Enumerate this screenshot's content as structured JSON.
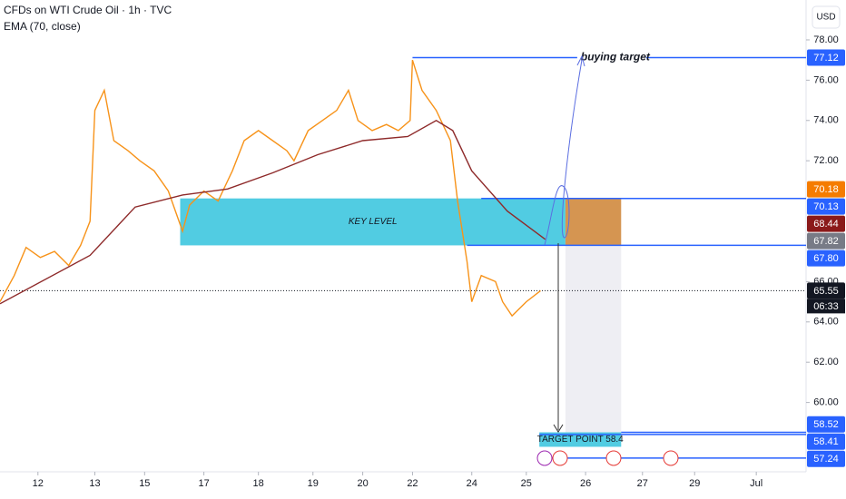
{
  "chart_data": {
    "type": "line",
    "title": "CFDs on WTI Crude Oil · 1h · TVC",
    "currency": "USD",
    "xlim": [
      0,
      340
    ],
    "xticks": [
      {
        "value": 16,
        "label": "12"
      },
      {
        "value": 40,
        "label": "13"
      },
      {
        "value": 61,
        "label": "15"
      },
      {
        "value": 86,
        "label": "17"
      },
      {
        "value": 109,
        "label": "18"
      },
      {
        "value": 132,
        "label": "19"
      },
      {
        "value": 153,
        "label": "20"
      },
      {
        "value": 174,
        "label": "22"
      },
      {
        "value": 199,
        "label": "24"
      },
      {
        "value": 222,
        "label": "25"
      },
      {
        "value": 247,
        "label": "26"
      },
      {
        "value": 271,
        "label": "27"
      },
      {
        "value": 293,
        "label": "29"
      },
      {
        "value": 319,
        "label": "Jul"
      }
    ],
    "ylim": [
      56.56,
      79.98
    ],
    "yticks": [
      {
        "value": 60,
        "label": "60.00"
      },
      {
        "value": 62,
        "label": "62.00"
      },
      {
        "value": 64,
        "label": "64.00"
      },
      {
        "value": 66,
        "label": "66.00"
      },
      {
        "value": 72,
        "label": "72.00"
      },
      {
        "value": 74,
        "label": "74.00"
      },
      {
        "value": 76,
        "label": "76.00"
      },
      {
        "value": 78,
        "label": "78.00"
      }
    ],
    "series": [
      {
        "color": "#f7931a",
        "x": [
          0,
          6,
          11,
          17,
          23,
          29,
          34,
          38,
          40,
          44,
          48,
          54,
          59,
          65,
          71,
          77,
          80,
          86,
          92,
          98,
          103,
          109,
          115,
          121,
          124,
          130,
          136,
          142,
          147,
          151,
          157,
          163,
          168,
          173,
          174,
          178,
          184,
          190,
          193,
          197,
          199,
          203,
          209,
          212,
          216,
          222,
          228
        ],
        "values": [
          65.0,
          66.3,
          67.7,
          67.2,
          67.5,
          66.8,
          67.8,
          69.0,
          74.5,
          75.5,
          73.0,
          72.5,
          72.0,
          71.5,
          70.5,
          68.5,
          69.8,
          70.5,
          70.0,
          71.5,
          73.0,
          73.5,
          73.0,
          72.5,
          72.0,
          73.5,
          74.0,
          74.5,
          75.5,
          74.0,
          73.5,
          73.8,
          73.5,
          74.0,
          77.0,
          75.5,
          74.5,
          73.0,
          70.0,
          67.0,
          65.0,
          66.3,
          66.0,
          65.0,
          64.3,
          65.0,
          65.55
        ]
      },
      {
        "name": "EMA (70, close)",
        "color": "#8e2a2a",
        "x": [
          0,
          38,
          57,
          77,
          96,
          115,
          134,
          153,
          172,
          184,
          191,
          199,
          214,
          230
        ],
        "values": [
          64.9,
          67.3,
          69.7,
          70.3,
          70.6,
          71.4,
          72.3,
          73.0,
          73.2,
          74.0,
          73.5,
          71.5,
          69.5,
          68.1
        ]
      }
    ],
    "last_price": 65.55,
    "countdown": "06:33",
    "price_labels": [
      {
        "value": 77.12,
        "label": "77.12",
        "color": "#2962ff",
        "line_from": 174
      },
      {
        "value": 70.18,
        "label": "70.18",
        "color": "#f57c00"
      },
      {
        "value": 70.13,
        "label": "70.13",
        "color": "#2962ff",
        "line_from": 203
      },
      {
        "value": 68.44,
        "label": "68.44",
        "color": "#8b1a1a"
      },
      {
        "value": 67.82,
        "label": "67.82",
        "color": "#787b86"
      },
      {
        "value": 67.8,
        "label": "67.80",
        "color": "#2962ff",
        "line_from": 197
      },
      {
        "value": 65.55,
        "label": "65.55",
        "color": "#131722"
      },
      {
        "value": 58.52,
        "label": "58.52",
        "color": "#2962ff",
        "line_from": 262
      },
      {
        "value": 58.41,
        "label": "58.41",
        "color": "#2962ff",
        "line_from": 227.5
      },
      {
        "value": 57.24,
        "label": "57.24",
        "color": "#2962ff",
        "line_from": 227.5
      }
    ],
    "key_level": {
      "label": "KEY LEVEL",
      "x": [
        76,
        238.5
      ],
      "y": [
        67.8,
        70.13
      ],
      "color": "#3ec6df"
    },
    "entry_box": {
      "x": [
        238.5,
        262
      ],
      "y": [
        67.8,
        70.13
      ],
      "color": "#d08a3e"
    },
    "target_zone": {
      "x": [
        238.5,
        262
      ],
      "y": [
        58.52,
        67.8
      ],
      "color": "#ececf2"
    },
    "target": {
      "label": "TARGET POINT 58.4",
      "x": [
        227.5,
        262
      ],
      "y": [
        57.8,
        58.52
      ],
      "color": "#3ec6df"
    },
    "buying_target": {
      "label": "buying target",
      "value": 77.12,
      "x": 245
    }
  }
}
